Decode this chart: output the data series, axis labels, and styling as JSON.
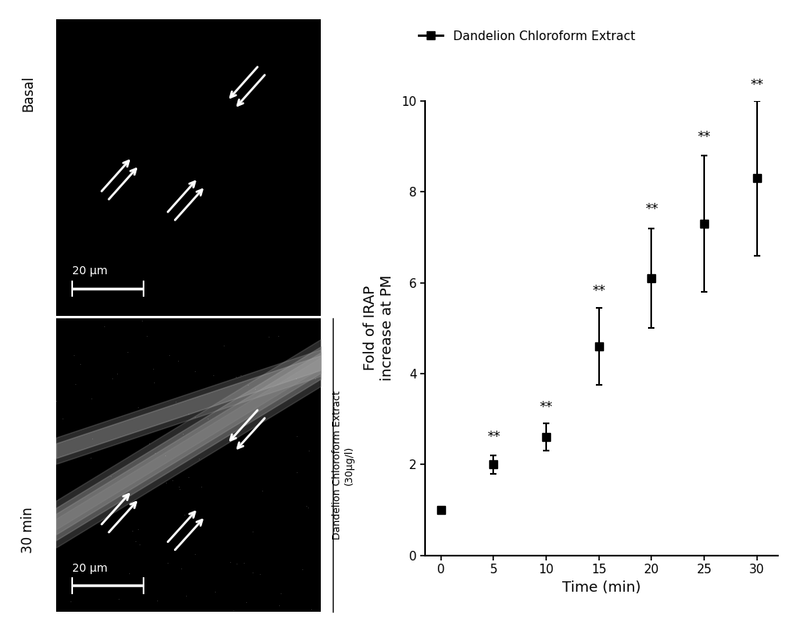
{
  "x": [
    0,
    5,
    10,
    15,
    20,
    25,
    30
  ],
  "y": [
    1.0,
    2.0,
    2.6,
    4.6,
    6.1,
    7.3,
    8.3
  ],
  "yerr": [
    0.05,
    0.2,
    0.3,
    0.85,
    1.1,
    1.5,
    1.7
  ],
  "xlabel": "Time (min)",
  "ylabel": "Fold of IRAP\nincrease at PM",
  "legend_label": "Dandelion Chloroform Extract",
  "sig_labels": [
    "**",
    "**",
    "**",
    "**",
    "**",
    "**"
  ],
  "sig_x": [
    5,
    10,
    15,
    20,
    25,
    30
  ],
  "sig_y": [
    2.45,
    3.1,
    5.65,
    7.45,
    9.05,
    10.2
  ],
  "ylim": [
    0,
    10
  ],
  "xticks": [
    0,
    5,
    10,
    15,
    20,
    25,
    30
  ],
  "yticks": [
    0,
    2,
    4,
    6,
    8,
    10
  ],
  "line_color": "#000000",
  "marker": "s",
  "markersize": 7,
  "linewidth": 2,
  "axis_fontsize": 13,
  "tick_fontsize": 11,
  "sig_fontsize": 12,
  "legend_fontsize": 11,
  "basal_label": "Basal",
  "min30_label": "30 min",
  "scale_bar_text": "20 μm",
  "side_label": "Dandelion Chloroform Extract\n(30μg/l)",
  "background_color": "#ffffff"
}
